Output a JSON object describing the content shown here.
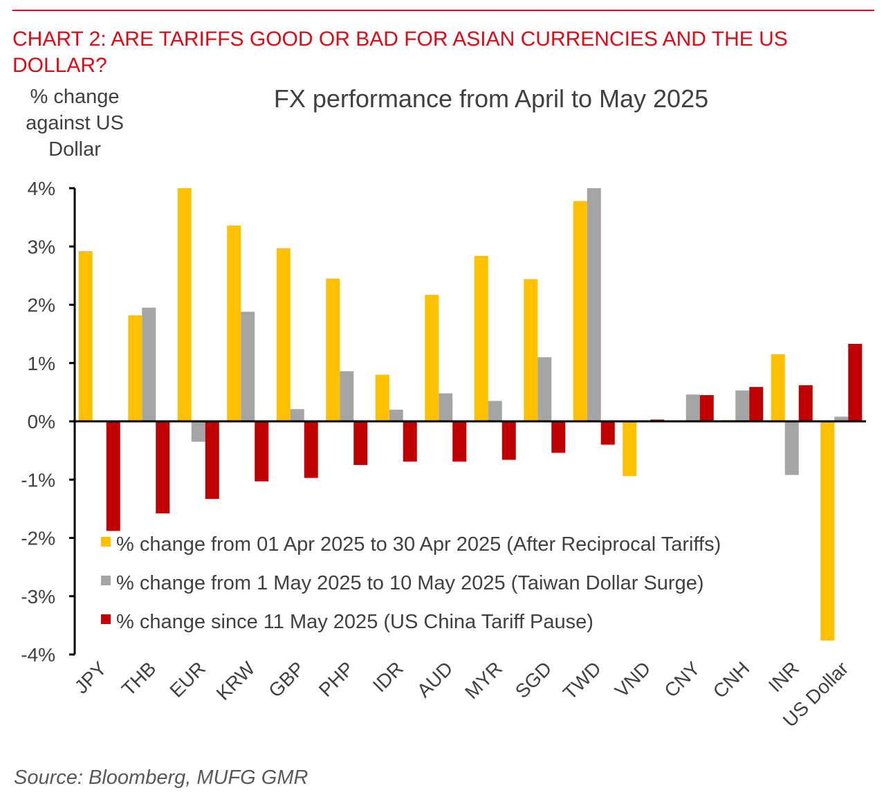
{
  "heading": "CHART 2: ARE TARIFFS GOOD OR BAD FOR ASIAN CURRENCIES AND THE US DOLLAR?",
  "source": "Source: Bloomberg, MUFG GMR",
  "chart_data": {
    "type": "bar",
    "title": "FX performance from April to May 2025",
    "ylabel": [
      "% change",
      "against US",
      "Dollar"
    ],
    "xlabel": "",
    "ylim": [
      -4,
      4
    ],
    "yticks": [
      4,
      3,
      2,
      1,
      0,
      -1,
      -2,
      -3,
      -4
    ],
    "ytick_labels": [
      "4%",
      "3%",
      "2%",
      "1%",
      "0%",
      "-1%",
      "-2%",
      "-3%",
      "-4%"
    ],
    "grid": false,
    "legend_position": "bottom-center-inside",
    "categories": [
      "JPY",
      "THB",
      "EUR",
      "KRW",
      "GBP",
      "PHP",
      "IDR",
      "AUD",
      "MYR",
      "SGD",
      "TWD",
      "VND",
      "CNY",
      "CNH",
      "INR",
      "US Dollar"
    ],
    "series": [
      {
        "name": "% change from 01 Apr 2025 to 30 Apr 2025 (After Reciprocal Tariffs)",
        "color": "#FFC000",
        "values": [
          2.92,
          1.82,
          4.0,
          3.36,
          2.97,
          2.45,
          0.8,
          2.17,
          2.84,
          2.44,
          3.78,
          -0.94,
          0.0,
          0.02,
          1.15,
          -3.76
        ]
      },
      {
        "name": "% change from 1 May 2025 to 10 May 2025 (Taiwan Dollar Surge)",
        "color": "#A5A5A5",
        "values": [
          0.0,
          1.95,
          -0.35,
          1.88,
          0.21,
          0.86,
          0.2,
          0.48,
          0.35,
          1.1,
          4.0,
          0.0,
          0.46,
          0.53,
          -0.92,
          0.08
        ]
      },
      {
        "name": "% change since 11 May 2025 (US China Tariff Pause)",
        "color": "#C00000",
        "values": [
          -1.88,
          -1.58,
          -1.33,
          -1.03,
          -0.97,
          -0.75,
          -0.69,
          -0.69,
          -0.66,
          -0.54,
          -0.4,
          0.03,
          0.45,
          0.59,
          0.62,
          1.33
        ]
      }
    ]
  }
}
